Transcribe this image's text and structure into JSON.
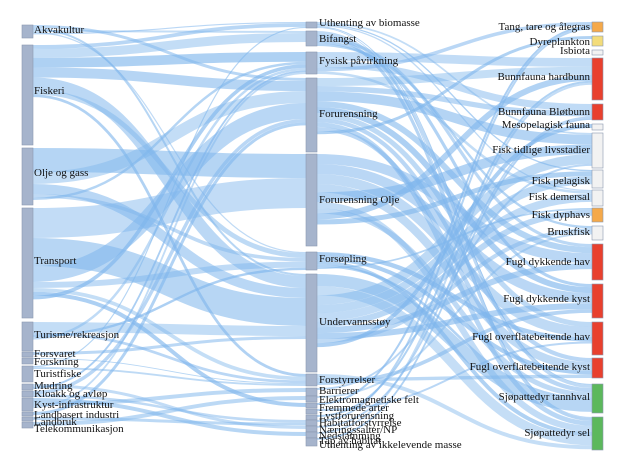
{
  "sources": [
    {
      "label": "Akvakultur"
    },
    {
      "label": "Fiskeri"
    },
    {
      "label": "Olje og gass"
    },
    {
      "label": "Transport"
    },
    {
      "label": "Turisme/rekreasjon"
    },
    {
      "label": "Forsvaret"
    },
    {
      "label": "Forskning"
    },
    {
      "label": "Turistfiske"
    },
    {
      "label": "Mudring"
    },
    {
      "label": "Kloakk og avløp"
    },
    {
      "label": "Kyst-infrastruktur"
    },
    {
      "label": "Landbasert industri"
    },
    {
      "label": "Landbruk"
    },
    {
      "label": "Telekommunikasjon"
    }
  ],
  "pressures": [
    {
      "label": "Uthenting av biomasse"
    },
    {
      "label": "Bifangst"
    },
    {
      "label": "Fysisk påvirkning"
    },
    {
      "label": "Forurensning"
    },
    {
      "label": "Forurensning Olje"
    },
    {
      "label": "Forsøpling"
    },
    {
      "label": "Undervannsstøy"
    },
    {
      "label": "Forstyrrelser"
    },
    {
      "label": "Barrierer"
    },
    {
      "label": "Elektromagnetiske felt"
    },
    {
      "label": "Fremmede arter"
    },
    {
      "label": "Lystforurensning"
    },
    {
      "label": "Habitatforstyrrelse"
    },
    {
      "label": "Næringssalter/NP"
    },
    {
      "label": "Nedslamming"
    },
    {
      "label": "Tap av habitat"
    },
    {
      "label": "Uthenting av ikkelevende masse"
    }
  ],
  "receptors": [
    {
      "label": "Tang, tare og ålegras",
      "color": "#f5a94a"
    },
    {
      "label": "Dyreplankton",
      "color": "#f3dc7a"
    },
    {
      "label": "Isbiota",
      "color": "#f2f2f2"
    },
    {
      "label": "Bunnfauna hardbunn",
      "color": "#e8402e"
    },
    {
      "label": "Bunnfauna Bløtbunn",
      "color": "#e8402e"
    },
    {
      "label": "Mesopelagisk fauna",
      "color": "#f2f2f2"
    },
    {
      "label": "Fisk tidlige livsstadier",
      "color": "#f2f2f2"
    },
    {
      "label": "Fisk pelagisk",
      "color": "#f2f2f2"
    },
    {
      "label": "Fisk demersal",
      "color": "#f2f2f2"
    },
    {
      "label": "Fisk dyphavs",
      "color": "#f5a94a"
    },
    {
      "label": "Bruskfisk",
      "color": "#f2f2f2"
    },
    {
      "label": "Fugl dykkende hav",
      "color": "#e8402e"
    },
    {
      "label": "Fugl dykkende kyst",
      "color": "#e8402e"
    },
    {
      "label": "Fugl overflatebeitende hav",
      "color": "#e8402e"
    },
    {
      "label": "Fugl overflatebeitende kyst",
      "color": "#e8402e"
    },
    {
      "label": "Sjøpattedyr tannhval",
      "color": "#5cb85c"
    },
    {
      "label": "Sjøpattedyr sel",
      "color": "#5cb85c"
    }
  ],
  "colors": {
    "link": "#7fb6ec",
    "node": "#a6b4cc",
    "node_stroke": "#8a98b0"
  }
}
